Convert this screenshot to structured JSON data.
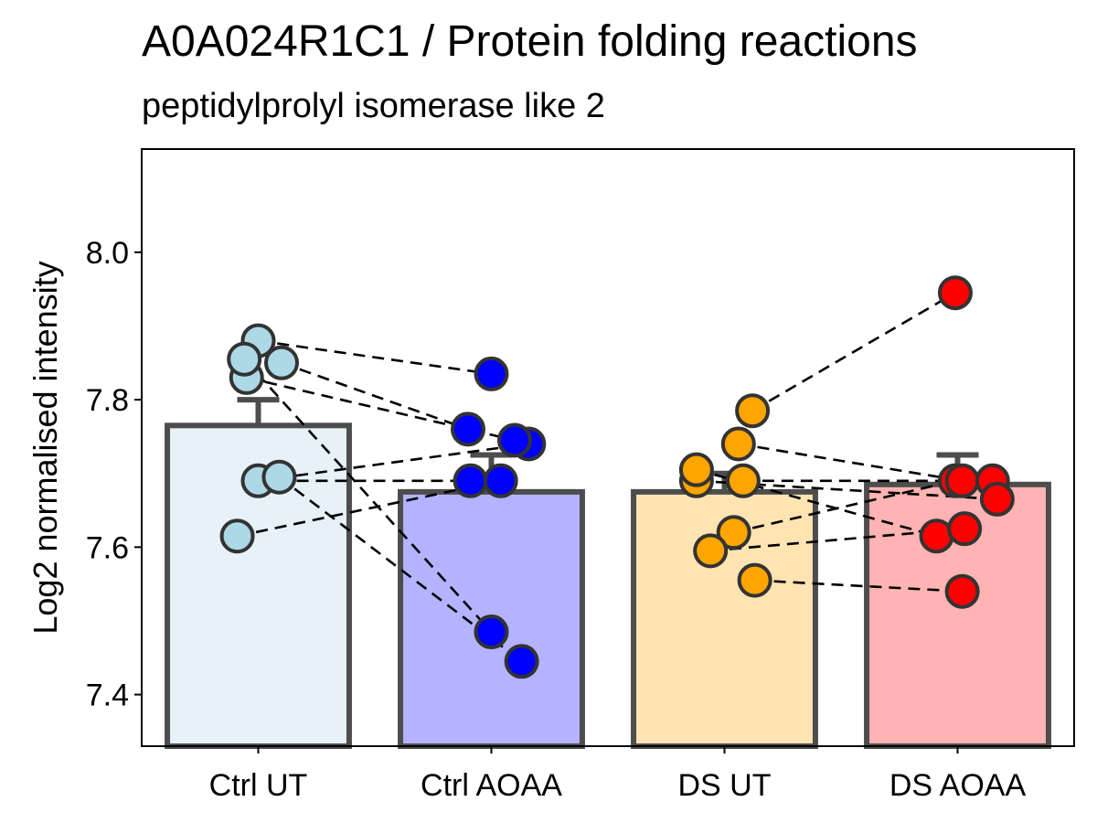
{
  "chart_data": {
    "type": "bar",
    "title": "A0A024R1C1 / Protein folding reactions",
    "subtitle": "peptidylprolyl isomerase like 2",
    "ylabel": "Log2 normalised intensity",
    "xlabel": "",
    "ylim": [
      7.33,
      8.14
    ],
    "yticks": [
      7.4,
      7.6,
      7.8,
      8.0
    ],
    "ytick_labels": [
      "7.4",
      "7.6",
      "7.8",
      "8.0"
    ],
    "grid": false,
    "categories": [
      "Ctrl UT",
      "Ctrl AOAA",
      "DS UT",
      "DS AOAA"
    ],
    "bars": [
      {
        "category": "Ctrl UT",
        "mean": 7.765,
        "error_upper": 7.8,
        "fill": "#e6f2f8",
        "point_color": "#add8e6"
      },
      {
        "category": "Ctrl AOAA",
        "mean": 7.675,
        "error_upper": 7.725,
        "fill": "#b3b3ff",
        "point_color": "#0000ff"
      },
      {
        "category": "DS UT",
        "mean": 7.675,
        "error_upper": 7.7,
        "fill": "#fde4b2",
        "point_color": "#ffa500"
      },
      {
        "category": "DS AOAA",
        "mean": 7.685,
        "error_upper": 7.725,
        "fill": "#ffb3b3",
        "point_color": "#ff0000"
      }
    ],
    "points": [
      {
        "category": "Ctrl UT",
        "jitter": 0.0,
        "value": 7.88
      },
      {
        "category": "Ctrl UT",
        "jitter": 0.1,
        "value": 7.85
      },
      {
        "category": "Ctrl UT",
        "jitter": -0.05,
        "value": 7.83
      },
      {
        "category": "Ctrl UT",
        "jitter": -0.06,
        "value": 7.855
      },
      {
        "category": "Ctrl UT",
        "jitter": 0.0,
        "value": 7.69
      },
      {
        "category": "Ctrl UT",
        "jitter": 0.09,
        "value": 7.695
      },
      {
        "category": "Ctrl UT",
        "jitter": -0.09,
        "value": 7.615
      },
      {
        "category": "Ctrl AOAA",
        "jitter": 0.0,
        "value": 7.835
      },
      {
        "category": "Ctrl AOAA",
        "jitter": -0.1,
        "value": 7.76
      },
      {
        "category": "Ctrl AOAA",
        "jitter": 0.16,
        "value": 7.74
      },
      {
        "category": "Ctrl AOAA",
        "jitter": 0.1,
        "value": 7.745
      },
      {
        "category": "Ctrl AOAA",
        "jitter": -0.09,
        "value": 7.69
      },
      {
        "category": "Ctrl AOAA",
        "jitter": 0.04,
        "value": 7.69
      },
      {
        "category": "Ctrl AOAA",
        "jitter": 0.0,
        "value": 7.485
      },
      {
        "category": "Ctrl AOAA",
        "jitter": 0.13,
        "value": 7.445
      },
      {
        "category": "DS UT",
        "jitter": 0.12,
        "value": 7.785
      },
      {
        "category": "DS UT",
        "jitter": 0.06,
        "value": 7.74
      },
      {
        "category": "DS UT",
        "jitter": -0.12,
        "value": 7.69
      },
      {
        "category": "DS UT",
        "jitter": -0.12,
        "value": 7.705
      },
      {
        "category": "DS UT",
        "jitter": 0.08,
        "value": 7.69
      },
      {
        "category": "DS UT",
        "jitter": 0.04,
        "value": 7.62
      },
      {
        "category": "DS UT",
        "jitter": -0.06,
        "value": 7.595
      },
      {
        "category": "DS UT",
        "jitter": 0.13,
        "value": 7.555
      },
      {
        "category": "DS AOAA",
        "jitter": -0.01,
        "value": 7.945
      },
      {
        "category": "DS AOAA",
        "jitter": -0.01,
        "value": 7.69
      },
      {
        "category": "DS AOAA",
        "jitter": 0.02,
        "value": 7.69
      },
      {
        "category": "DS AOAA",
        "jitter": 0.15,
        "value": 7.69
      },
      {
        "category": "DS AOAA",
        "jitter": 0.17,
        "value": 7.665
      },
      {
        "category": "DS AOAA",
        "jitter": -0.09,
        "value": 7.615
      },
      {
        "category": "DS AOAA",
        "jitter": 0.03,
        "value": 7.625
      },
      {
        "category": "DS AOAA",
        "jitter": 0.02,
        "value": 7.54
      }
    ],
    "pair_lines": [
      [
        [
          0.0,
          7.88
        ],
        [
          1.0,
          7.835
        ]
      ],
      [
        [
          0.1,
          7.85
        ],
        [
          0.9,
          7.76
        ]
      ],
      [
        [
          -0.05,
          7.83
        ],
        [
          1.1,
          7.745
        ]
      ],
      [
        [
          -0.06,
          7.855
        ],
        [
          1.0,
          7.485
        ]
      ],
      [
        [
          0.0,
          7.69
        ],
        [
          1.16,
          7.74
        ]
      ],
      [
        [
          0.09,
          7.695
        ],
        [
          1.13,
          7.445
        ]
      ],
      [
        [
          -0.09,
          7.615
        ],
        [
          1.04,
          7.69
        ]
      ],
      [
        [
          0.0,
          7.69
        ],
        [
          0.91,
          7.69
        ]
      ],
      [
        [
          2.12,
          7.785
        ],
        [
          2.99,
          7.945
        ]
      ],
      [
        [
          2.06,
          7.74
        ],
        [
          3.02,
          7.69
        ]
      ],
      [
        [
          1.88,
          7.69
        ],
        [
          3.17,
          7.665
        ]
      ],
      [
        [
          2.08,
          7.69
        ],
        [
          3.15,
          7.69
        ]
      ],
      [
        [
          2.04,
          7.62
        ],
        [
          2.99,
          7.69
        ]
      ],
      [
        [
          1.94,
          7.595
        ],
        [
          3.03,
          7.625
        ]
      ],
      [
        [
          2.13,
          7.555
        ],
        [
          3.02,
          7.54
        ]
      ],
      [
        [
          1.88,
          7.705
        ],
        [
          2.91,
          7.615
        ]
      ]
    ]
  }
}
